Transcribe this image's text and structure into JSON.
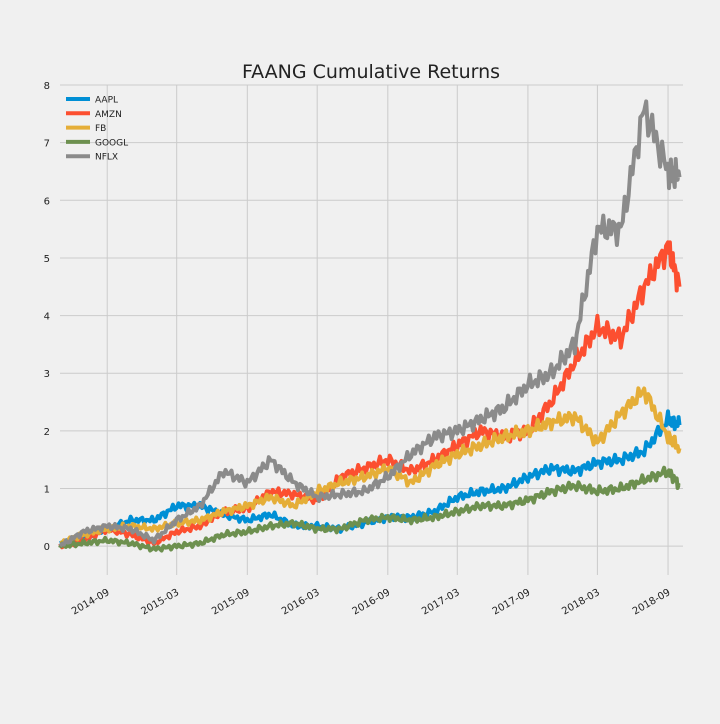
{
  "chart_data": {
    "type": "line",
    "title": "FAANG Cumulative Returns",
    "xlabel": "",
    "ylabel": "",
    "x_start": "2014-05",
    "x_end": "2018-09",
    "x_ticks": [
      "2014-09",
      "2015-03",
      "2015-09",
      "2016-03",
      "2016-09",
      "2017-03",
      "2017-09",
      "2018-03",
      "2018-09"
    ],
    "y_ticks": [
      0,
      1,
      2,
      3,
      4,
      5,
      6,
      7,
      8
    ],
    "ylim": [
      -0.5,
      8
    ],
    "grid": true,
    "legend_position": "top-left",
    "x": [
      "2014-05",
      "2014-07",
      "2014-09",
      "2014-11",
      "2015-01",
      "2015-03",
      "2015-05",
      "2015-07",
      "2015-09",
      "2015-11",
      "2016-01",
      "2016-03",
      "2016-05",
      "2016-07",
      "2016-09",
      "2016-11",
      "2017-01",
      "2017-03",
      "2017-05",
      "2017-07",
      "2017-09",
      "2017-11",
      "2018-01",
      "2018-03",
      "2018-05",
      "2018-07",
      "2018-09",
      "2018-10"
    ],
    "series": [
      {
        "name": "AAPL",
        "color": "#008fd5",
        "values": [
          0.05,
          0.15,
          0.3,
          0.45,
          0.45,
          0.7,
          0.7,
          0.55,
          0.45,
          0.55,
          0.35,
          0.35,
          0.3,
          0.4,
          0.5,
          0.5,
          0.6,
          0.85,
          0.95,
          1.0,
          1.2,
          1.35,
          1.3,
          1.45,
          1.5,
          1.65,
          2.2,
          2.1
        ]
      },
      {
        "name": "AMZN",
        "color": "#fc4f30",
        "values": [
          0.0,
          0.1,
          0.3,
          0.2,
          0.05,
          0.25,
          0.35,
          0.6,
          0.65,
          0.95,
          0.9,
          0.8,
          1.2,
          1.35,
          1.5,
          1.3,
          1.5,
          1.75,
          2.0,
          1.9,
          2.0,
          2.5,
          3.2,
          3.8,
          3.6,
          4.5,
          5.2,
          4.5
        ]
      },
      {
        "name": "FB",
        "color": "#e5ae38",
        "values": [
          0.05,
          0.2,
          0.3,
          0.35,
          0.3,
          0.4,
          0.45,
          0.6,
          0.7,
          0.85,
          0.7,
          0.95,
          1.1,
          1.2,
          1.35,
          1.1,
          1.4,
          1.6,
          1.75,
          1.9,
          2.0,
          2.15,
          2.25,
          1.8,
          2.3,
          2.7,
          1.9,
          1.7
        ]
      },
      {
        "name": "GOOGL",
        "color": "#6d904f",
        "values": [
          0.0,
          0.05,
          0.1,
          0.05,
          -0.05,
          0.0,
          0.05,
          0.2,
          0.25,
          0.35,
          0.4,
          0.3,
          0.3,
          0.45,
          0.5,
          0.45,
          0.5,
          0.6,
          0.7,
          0.7,
          0.8,
          0.95,
          1.05,
          0.95,
          1.0,
          1.15,
          1.3,
          1.05
        ]
      },
      {
        "name": "NFLX",
        "color": "#8b8b8b",
        "values": [
          0.0,
          0.25,
          0.35,
          0.3,
          0.1,
          0.45,
          0.7,
          1.3,
          1.1,
          1.5,
          1.1,
          0.85,
          0.9,
          0.95,
          1.2,
          1.6,
          1.9,
          2.0,
          2.2,
          2.4,
          2.8,
          3.0,
          3.5,
          5.5,
          5.5,
          7.6,
          6.5,
          6.4
        ]
      }
    ]
  }
}
